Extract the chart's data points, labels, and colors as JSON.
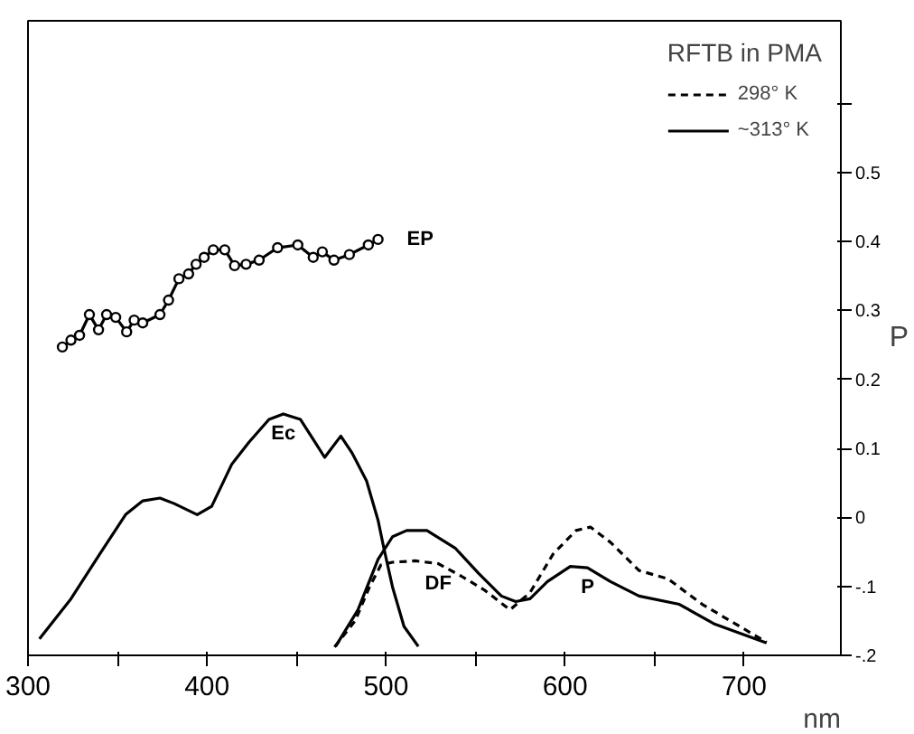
{
  "chart_data": {
    "type": "line",
    "xlabel": "nm",
    "ylabel": "P",
    "legend_title": "RFTB in PMA",
    "xlim": [
      300,
      754
    ],
    "ylim": [
      -0.2,
      0.72
    ],
    "xticks": [
      300,
      {
        "value": 350,
        "label": null
      },
      400,
      {
        "value": 450,
        "label": null
      },
      500,
      {
        "value": 550,
        "label": null
      },
      600,
      {
        "value": 650,
        "label": null
      },
      700
    ],
    "yticks": [
      {
        "value": -0.2,
        "label": "-.2"
      },
      {
        "value": -0.1,
        "label": "-.1"
      },
      0,
      0.1,
      0.2,
      0.3,
      0.4,
      0.5,
      {
        "value": 0.6,
        "label": null
      }
    ],
    "grid": false,
    "legend": "top right",
    "series": [
      {
        "color": "#000000",
        "line_style": "solid",
        "marker": "circle",
        "x": [
          319.2,
          324.0,
          328.8,
          334.3,
          339.4,
          343.9,
          349.0,
          355.1,
          359.3,
          364.1,
          373.7,
          378.5,
          384.3,
          389.7,
          393.9,
          398.4,
          403.5,
          409.9,
          415.4,
          421.8,
          429.1,
          439.4,
          450.7,
          459.3,
          464.4,
          470.9,
          479.5,
          490.1,
          495.5
        ],
        "values": [
          0.247,
          0.257,
          0.264,
          0.294,
          0.272,
          0.294,
          0.29,
          0.269,
          0.286,
          0.282,
          0.294,
          0.315,
          0.346,
          0.353,
          0.367,
          0.377,
          0.388,
          0.388,
          0.365,
          0.367,
          0.373,
          0.391,
          0.395,
          0.377,
          0.385,
          0.373,
          0.381,
          0.395,
          0.403
        ]
      },
      {
        "color": "#000000",
        "line_style": "solid",
        "x": [
          306.4,
          324.0,
          340.1,
          354.5,
          364.1,
          373.7,
          381.7,
          394.5,
          402.6,
          413.8,
          423.4,
          434.6,
          442.6,
          452.2,
          460.3,
          465.7,
          474.7,
          481.1,
          489.1,
          495.5,
          498.8,
          503.6,
          510.0,
          518.0
        ],
        "values": [
          -0.176,
          -0.118,
          -0.053,
          0.004,
          0.024,
          0.028,
          0.02,
          0.004,
          0.016,
          0.077,
          0.109,
          0.142,
          0.15,
          0.142,
          0.109,
          0.087,
          0.118,
          0.093,
          0.053,
          -0.004,
          -0.045,
          -0.101,
          -0.158,
          -0.187
        ]
      },
      {
        "name": "298° K",
        "color": "#000000",
        "line_style": "dashed",
        "x": [
          471.2,
          482.7,
          490.7,
          497.1,
          503.6,
          516.3,
          529.1,
          541.9,
          554.8,
          569.2,
          580.4,
          593.3,
          606.1,
          614.1,
          625.3,
          641.3,
          657.4,
          676.6,
          712.5
        ],
        "values": [
          -0.188,
          -0.15,
          -0.101,
          -0.069,
          -0.065,
          -0.063,
          -0.067,
          -0.085,
          -0.105,
          -0.134,
          -0.109,
          -0.053,
          -0.019,
          -0.014,
          -0.036,
          -0.077,
          -0.089,
          -0.126,
          -0.181
        ]
      },
      {
        "name": "~313° K",
        "color": "#000000",
        "line_style": "solid",
        "x": [
          471.8,
          484.3,
          495.5,
          503.6,
          511.5,
          522.8,
          538.8,
          551.6,
          564.4,
          572.4,
          580.4,
          590.1,
          602.9,
          612.5,
          625.3,
          641.3,
          663.8,
          683.0,
          712.5
        ],
        "values": [
          -0.187,
          -0.134,
          -0.061,
          -0.028,
          -0.019,
          -0.019,
          -0.045,
          -0.081,
          -0.114,
          -0.122,
          -0.118,
          -0.093,
          -0.071,
          -0.073,
          -0.093,
          -0.114,
          -0.126,
          -0.154,
          -0.182
        ]
      }
    ],
    "annotations": [
      {
        "text": "EP",
        "x": 495.5,
        "y": 0.403
      },
      {
        "text": "Ec",
        "x": 442.6,
        "y": 0.15
      },
      {
        "text": "DF",
        "x": 529.1,
        "y": -0.067
      },
      {
        "text": "P",
        "x": 612.5,
        "y": -0.073
      }
    ]
  }
}
